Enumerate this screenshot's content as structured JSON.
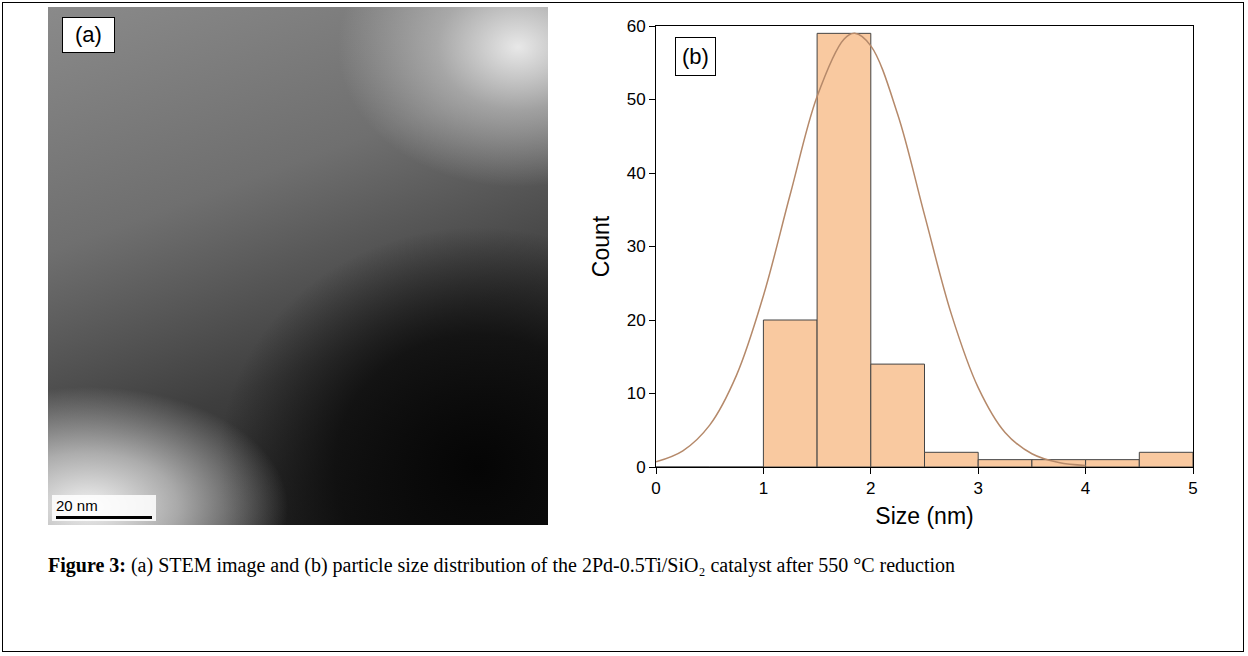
{
  "image_panel": {
    "label": "(a)",
    "scale_bar": "20 nm"
  },
  "chart_data": {
    "type": "histogram",
    "label": "(b)",
    "bins": [
      0,
      0.5,
      1,
      1.5,
      2,
      2.5,
      3,
      3.5,
      4,
      4.5,
      5
    ],
    "values": [
      0,
      0,
      20,
      59,
      14,
      2,
      1,
      1,
      1,
      2
    ],
    "color": "#f9c9a0",
    "curve": {
      "type": "line",
      "color": "#b5896a",
      "x": [
        0,
        0.25,
        0.5,
        0.75,
        1.0,
        1.25,
        1.5,
        1.75,
        1.85,
        2.0,
        2.25,
        2.5,
        2.75,
        3.0,
        3.25,
        3.5,
        3.75,
        4.0
      ],
      "values": [
        0.7,
        2.2,
        5.7,
        12.5,
        23.3,
        37.1,
        50.4,
        58.2,
        59,
        57.3,
        48.0,
        34.3,
        20.8,
        10.8,
        4.7,
        1.8,
        0.6,
        0.2
      ]
    },
    "xlabel": "Size (nm)",
    "ylabel": "Count",
    "xlim": [
      0,
      5
    ],
    "ylim": [
      0,
      60
    ],
    "xticks": [
      0,
      1,
      2,
      3,
      4,
      5
    ],
    "yticks": [
      0,
      10,
      20,
      30,
      40,
      50,
      60
    ],
    "grid": false
  },
  "caption": {
    "label": "Figure 3:",
    "text": "(a) STEM image and (b) particle size distribution of the 2Pd-0.5Ti/SiO₂ catalyst after 550 °C reduction"
  }
}
